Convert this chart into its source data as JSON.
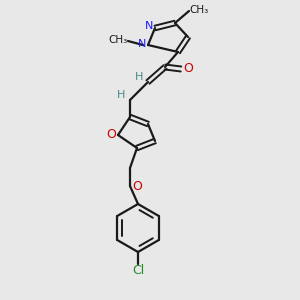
{
  "bg_color": "#e8e8e8",
  "bond_color": "#1a1a1a",
  "N_color": "#1a1aff",
  "O_color": "#cc0000",
  "Cl_color": "#228b22",
  "H_color": "#4a8a8a",
  "figsize": [
    3.0,
    3.0
  ],
  "dpi": 100,
  "xlim": [
    0,
    300
  ],
  "ylim": [
    0,
    300
  ]
}
